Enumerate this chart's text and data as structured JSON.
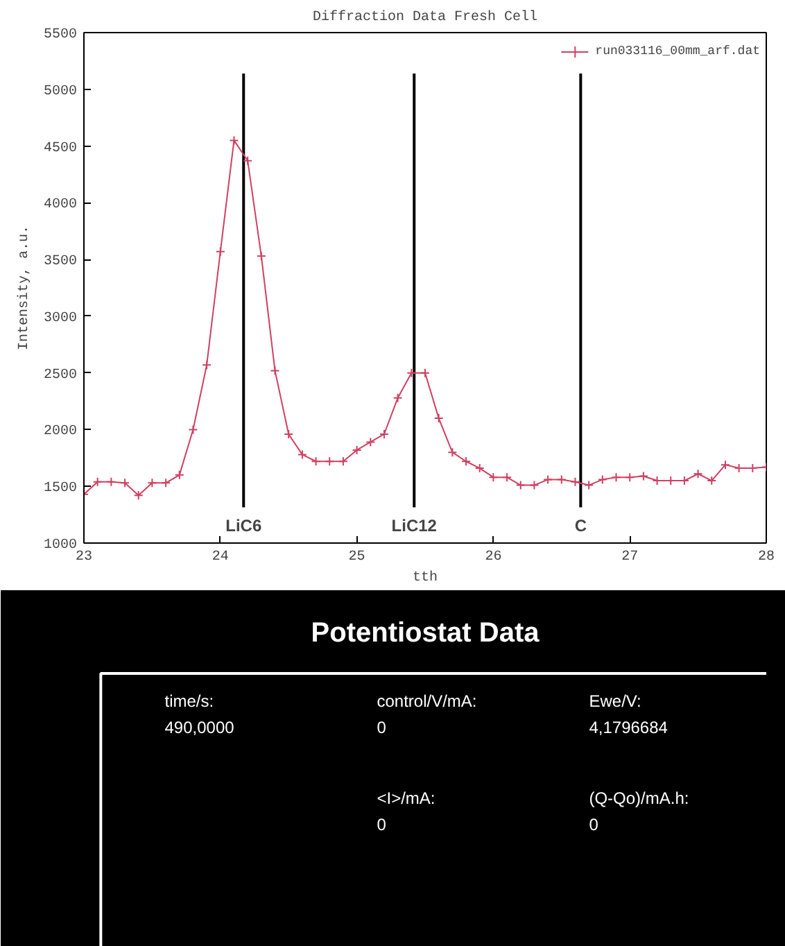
{
  "chart_data": [
    {
      "type": "line",
      "title": "Diffraction Data Fresh Cell",
      "xlabel": "tth",
      "ylabel": "Intensity, a.u.",
      "x": [
        23.0,
        23.1,
        23.2,
        23.3,
        23.4,
        23.5,
        23.6,
        23.7,
        23.8,
        23.9,
        24.0,
        24.1,
        24.2,
        24.3,
        24.4,
        24.5,
        24.6,
        24.7,
        24.8,
        24.9,
        25.0,
        25.1,
        25.2,
        25.3,
        25.4,
        25.5,
        25.6,
        25.7,
        25.8,
        25.9,
        26.0,
        26.1,
        26.2,
        26.3,
        26.4,
        26.5,
        26.6,
        26.7,
        26.8,
        26.9,
        27.0,
        27.1,
        27.2,
        27.3,
        27.4,
        27.5,
        27.6,
        27.7,
        27.8,
        27.9,
        28.0
      ],
      "series": [
        {
          "name": "run033116_00mm_arf.dat",
          "color": "#d04060",
          "values": [
            1430,
            1540,
            1540,
            1530,
            1420,
            1530,
            1530,
            1600,
            2000,
            2570,
            3570,
            4550,
            4370,
            3530,
            2520,
            1960,
            1780,
            1720,
            1720,
            1720,
            1820,
            1890,
            1960,
            2280,
            2500,
            2500,
            2100,
            1800,
            1720,
            1660,
            1580,
            1580,
            1510,
            1510,
            1560,
            1560,
            1540,
            1510,
            1560,
            1580,
            1580,
            1590,
            1550,
            1550,
            1550,
            1610,
            1550,
            1690,
            1660,
            1660,
            1670
          ]
        }
      ],
      "xlim": [
        23,
        28
      ],
      "ylim": [
        1000,
        5500
      ],
      "xticks": [
        23,
        24,
        25,
        26,
        27,
        28
      ],
      "yticks": [
        1000,
        1500,
        2000,
        2500,
        3000,
        3500,
        4000,
        4500,
        5000,
        5500
      ],
      "ref_lines": [
        {
          "axis": "x",
          "value": 24.17,
          "label": "LiC6"
        },
        {
          "axis": "x",
          "value": 25.42,
          "label": "LiC12"
        },
        {
          "axis": "x",
          "value": 26.64,
          "label": "C"
        }
      ],
      "marker": "cross",
      "line_style": "solid",
      "grid": false,
      "legend": "top right"
    },
    {
      "type": "other",
      "title": "Potentiostat Data",
      "annotations": [
        "time/s:",
        "490,0000",
        "control/V/mA:",
        "0",
        "Ewe/V:",
        "4,1796684",
        "<I>/mA:",
        "0",
        "(Q-Qo)/mA.h:",
        "0"
      ]
    }
  ]
}
